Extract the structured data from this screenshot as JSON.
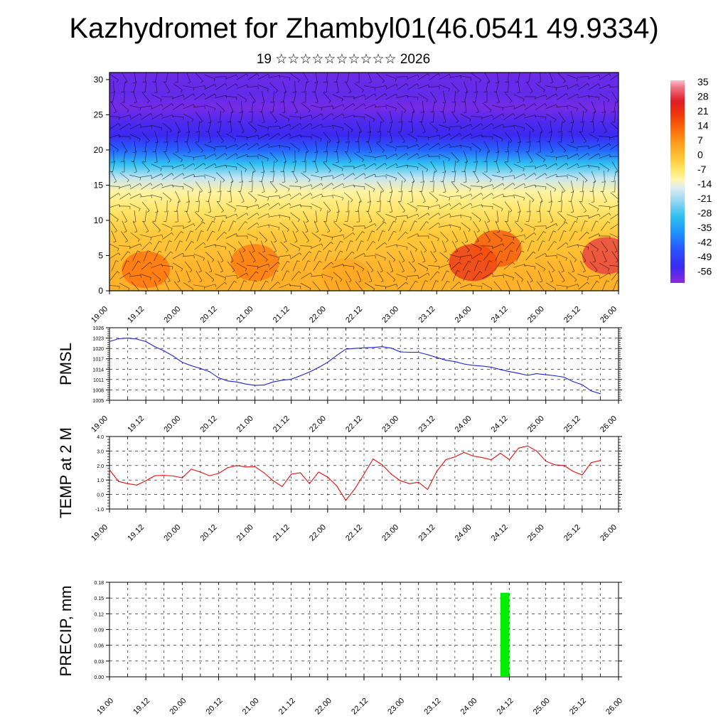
{
  "header": {
    "title": "Kazhydromet for Zhambyl01(46.0541 49.9334)",
    "subtitle": "19 ☆☆☆☆☆☆☆☆☆☆ 2026"
  },
  "colors": {
    "pmsl_line": "#2020d0",
    "temp_line": "#e01010",
    "precip_bar": "#00ee00",
    "axis": "#000000",
    "grid": "#000000"
  },
  "chart_data": [
    {
      "type": "heatmap",
      "name": "temperature-wind-cross-section",
      "title": "",
      "xlabel": "",
      "ylabel": "",
      "x_tick_labels": [
        "19.00",
        "19.12",
        "20.00",
        "20.12",
        "21.00",
        "21.12",
        "22.00",
        "22.12",
        "23.00",
        "23.12",
        "24.00",
        "24.12",
        "25.00",
        "25.12",
        "26.00"
      ],
      "xlim": [
        0,
        168
      ],
      "y_tick_labels": [
        "0",
        "5",
        "10",
        "15",
        "20",
        "25",
        "30"
      ],
      "ylim": [
        0,
        31
      ],
      "colorbar": {
        "labels": [
          "35",
          "28",
          "21",
          "14",
          "7",
          "0",
          "-7",
          "-14",
          "-21",
          "-28",
          "-35",
          "-42",
          "-49",
          "-56"
        ],
        "range": [
          -60,
          38
        ],
        "stops": [
          {
            "v": -60,
            "c": "#8a2be2"
          },
          {
            "v": -52,
            "c": "#3a2af0"
          },
          {
            "v": -44,
            "c": "#2a52ff"
          },
          {
            "v": -36,
            "c": "#1e90ff"
          },
          {
            "v": -28,
            "c": "#2ec0f0"
          },
          {
            "v": -20,
            "c": "#9ad7ef"
          },
          {
            "v": -14,
            "c": "#dcecf2"
          },
          {
            "v": -10,
            "c": "#fff7b0"
          },
          {
            "v": -5,
            "c": "#ffe566"
          },
          {
            "v": 0,
            "c": "#ffc83a"
          },
          {
            "v": 7,
            "c": "#ffa01e"
          },
          {
            "v": 14,
            "c": "#ff6e0c"
          },
          {
            "v": 21,
            "c": "#f03a08"
          },
          {
            "v": 28,
            "c": "#e01c28"
          },
          {
            "v": 35,
            "c": "#f07a8a"
          },
          {
            "v": 38,
            "c": "#f7c2cc"
          }
        ]
      },
      "profile_levels": [
        0,
        2,
        4,
        6,
        8,
        10,
        12,
        14,
        16,
        18,
        20,
        22,
        24,
        26,
        28,
        31
      ],
      "profile_temps": [
        4,
        4,
        3,
        1,
        0,
        -3,
        -6,
        -9,
        -16,
        -28,
        -42,
        -52,
        -54,
        -58,
        -56,
        -57
      ],
      "warm_cores": [
        {
          "x": 12,
          "y": 3,
          "t": 14
        },
        {
          "x": 48,
          "y": 4,
          "t": 13
        },
        {
          "x": 78,
          "y": 2,
          "t": 6
        },
        {
          "x": 120,
          "y": 4,
          "t": 24
        },
        {
          "x": 128,
          "y": 6,
          "t": 18
        },
        {
          "x": 164,
          "y": 5,
          "t": 30
        }
      ]
    },
    {
      "type": "line",
      "name": "pmsl",
      "ylabel": "PMSL",
      "x_tick_labels": [
        "19.00",
        "19.12",
        "20.00",
        "20.12",
        "21.00",
        "21.12",
        "22.00",
        "22.12",
        "23.00",
        "23.12",
        "24.00",
        "24.12",
        "25.00",
        "25.12",
        "26.00"
      ],
      "xlim": [
        0,
        168
      ],
      "ylim": [
        1005,
        1026
      ],
      "y_tick_labels": [
        "1005",
        "1008",
        "1011",
        "1014",
        "1017",
        "1020",
        "1023",
        "1026"
      ],
      "series": [
        {
          "name": "PMSL",
          "x": [
            0,
            3,
            6,
            9,
            12,
            15,
            18,
            21,
            24,
            27,
            30,
            33,
            36,
            39,
            42,
            45,
            48,
            51,
            54,
            57,
            60,
            63,
            66,
            69,
            72,
            75,
            78,
            81,
            84,
            87,
            90,
            93,
            96,
            99,
            102,
            105,
            108,
            111,
            114,
            117,
            120,
            123,
            126,
            129,
            132,
            135,
            138,
            141,
            144,
            147,
            150,
            153,
            156,
            159,
            162
          ],
          "values": [
            1022.0,
            1022.8,
            1023.0,
            1022.7,
            1022.0,
            1020.5,
            1019.3,
            1017.8,
            1016.0,
            1015.0,
            1014.2,
            1013.3,
            1011.5,
            1010.6,
            1010.3,
            1009.7,
            1009.3,
            1009.4,
            1010.3,
            1010.8,
            1011.1,
            1012.1,
            1013.2,
            1014.5,
            1016.0,
            1018.0,
            1019.8,
            1020.0,
            1020.2,
            1020.3,
            1020.5,
            1020.1,
            1019.0,
            1018.9,
            1018.9,
            1018.2,
            1017.4,
            1016.6,
            1016.2,
            1015.5,
            1015.1,
            1014.9,
            1014.6,
            1013.9,
            1013.3,
            1012.8,
            1012.2,
            1012.7,
            1012.4,
            1012.1,
            1011.7,
            1010.4,
            1009.5,
            1007.7,
            1006.9
          ]
        }
      ]
    },
    {
      "type": "line",
      "name": "temperature-2m",
      "ylabel": "TEMP at 2 M",
      "x_tick_labels": [
        "19.00",
        "19.12",
        "20.00",
        "20.12",
        "21.00",
        "21.12",
        "22.00",
        "22.12",
        "23.00",
        "23.12",
        "24.00",
        "24.12",
        "25.00",
        "25.12",
        "26.00"
      ],
      "xlim": [
        0,
        168
      ],
      "ylim": [
        -1.0,
        4.0
      ],
      "y_tick_labels": [
        "-1.0",
        "0.0",
        "1.0",
        "2.0",
        "3.0",
        "4.0"
      ],
      "series": [
        {
          "name": "T2M",
          "x": [
            0,
            3,
            6,
            9,
            12,
            15,
            18,
            21,
            24,
            27,
            30,
            33,
            36,
            39,
            42,
            45,
            48,
            51,
            54,
            57,
            60,
            63,
            66,
            69,
            72,
            75,
            78,
            81,
            84,
            87,
            90,
            93,
            96,
            99,
            102,
            105,
            108,
            111,
            114,
            117,
            120,
            123,
            126,
            129,
            132,
            135,
            138,
            141,
            144,
            147,
            150,
            153,
            156,
            159,
            162
          ],
          "values": [
            1.7,
            0.9,
            0.75,
            0.65,
            0.95,
            1.3,
            1.32,
            1.28,
            1.15,
            1.75,
            1.55,
            1.3,
            1.45,
            1.85,
            2.0,
            1.9,
            1.92,
            1.5,
            0.95,
            0.55,
            1.4,
            1.5,
            0.75,
            1.55,
            1.2,
            0.6,
            -0.4,
            0.4,
            1.4,
            2.45,
            2.05,
            1.4,
            0.95,
            0.75,
            0.85,
            0.35,
            1.6,
            2.4,
            2.6,
            2.9,
            2.65,
            2.55,
            2.4,
            2.85,
            2.4,
            3.2,
            3.35,
            3.0,
            2.3,
            2.05,
            2.0,
            1.6,
            1.35,
            2.2,
            2.35
          ]
        }
      ]
    },
    {
      "type": "bar",
      "name": "precipitation",
      "ylabel": "PRECIP, mm",
      "x_tick_labels": [
        "19.00",
        "19.12",
        "20.00",
        "20.12",
        "21.00",
        "21.12",
        "22.00",
        "22.12",
        "23.00",
        "23.12",
        "24.00",
        "24.12",
        "25.00",
        "25.12",
        "26.00"
      ],
      "xlim": [
        0,
        168
      ],
      "ylim": [
        0,
        0.18
      ],
      "y_tick_labels": [
        "0.00",
        "0.03",
        "0.06",
        "0.09",
        "0.12",
        "0.15",
        "0.18"
      ],
      "bar_width_hours": 3,
      "series": [
        {
          "name": "PRECIP",
          "x": [
            130.5
          ],
          "values": [
            0.16
          ]
        }
      ]
    }
  ]
}
